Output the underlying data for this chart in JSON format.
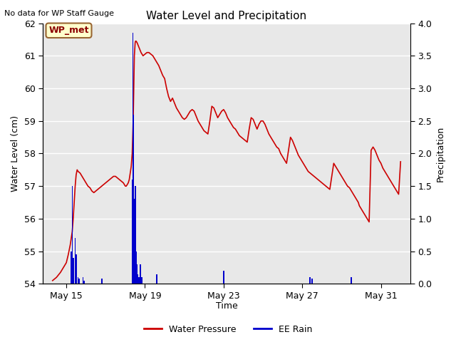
{
  "title": "Water Level and Precipitation",
  "top_left_text": "No data for WP Staff Gauge",
  "ylabel_left": "Water Level (cm)",
  "ylabel_right": "Precipitation",
  "xlabel": "Time",
  "ylim_left": [
    54.0,
    62.0
  ],
  "ylim_right": [
    0.0,
    4.0
  ],
  "yticks_left": [
    54.0,
    55.0,
    56.0,
    57.0,
    58.0,
    59.0,
    60.0,
    61.0,
    62.0
  ],
  "yticks_right": [
    0.0,
    0.5,
    1.0,
    1.5,
    2.0,
    2.5,
    3.0,
    3.5,
    4.0
  ],
  "bg_color": "#e8e8e8",
  "water_pressure_color": "#cc0000",
  "rain_color": "#0000cc",
  "legend_label_wp": "Water Pressure",
  "legend_label_rain": "EE Rain",
  "annotation_label": "WP_met",
  "xtick_days": [
    1,
    5,
    9,
    13,
    17
  ],
  "xtick_labels": [
    "May 15",
    "May 19",
    "May 23",
    "May 27",
    "May 31"
  ],
  "xmin": -0.2,
  "xmax": 18.5,
  "water_pressure": [
    [
      0.3,
      54.1
    ],
    [
      0.5,
      54.2
    ],
    [
      0.7,
      54.35
    ],
    [
      0.85,
      54.5
    ],
    [
      1.0,
      54.65
    ],
    [
      1.1,
      54.9
    ],
    [
      1.2,
      55.2
    ],
    [
      1.3,
      55.6
    ],
    [
      1.35,
      56.0
    ],
    [
      1.4,
      56.5
    ],
    [
      1.45,
      57.0
    ],
    [
      1.5,
      57.35
    ],
    [
      1.55,
      57.5
    ],
    [
      1.6,
      57.45
    ],
    [
      1.7,
      57.4
    ],
    [
      1.8,
      57.3
    ],
    [
      1.9,
      57.2
    ],
    [
      2.0,
      57.1
    ],
    [
      2.1,
      57.0
    ],
    [
      2.2,
      56.95
    ],
    [
      2.3,
      56.85
    ],
    [
      2.4,
      56.8
    ],
    [
      2.5,
      56.85
    ],
    [
      2.6,
      56.9
    ],
    [
      2.7,
      56.95
    ],
    [
      2.8,
      57.0
    ],
    [
      2.9,
      57.05
    ],
    [
      3.0,
      57.1
    ],
    [
      3.1,
      57.15
    ],
    [
      3.2,
      57.2
    ],
    [
      3.3,
      57.25
    ],
    [
      3.4,
      57.3
    ],
    [
      3.5,
      57.3
    ],
    [
      3.6,
      57.25
    ],
    [
      3.7,
      57.2
    ],
    [
      3.8,
      57.15
    ],
    [
      3.9,
      57.1
    ],
    [
      4.0,
      57.0
    ],
    [
      4.05,
      57.0
    ],
    [
      4.1,
      57.05
    ],
    [
      4.15,
      57.1
    ],
    [
      4.2,
      57.2
    ],
    [
      4.25,
      57.4
    ],
    [
      4.3,
      57.6
    ],
    [
      4.35,
      58.0
    ],
    [
      4.4,
      59.0
    ],
    [
      4.43,
      60.0
    ],
    [
      4.46,
      61.0
    ],
    [
      4.48,
      61.2
    ],
    [
      4.5,
      61.4
    ],
    [
      4.52,
      61.45
    ],
    [
      4.55,
      61.45
    ],
    [
      4.6,
      61.4
    ],
    [
      4.7,
      61.25
    ],
    [
      4.8,
      61.1
    ],
    [
      4.9,
      61.0
    ],
    [
      5.0,
      61.05
    ],
    [
      5.1,
      61.1
    ],
    [
      5.2,
      61.1
    ],
    [
      5.3,
      61.05
    ],
    [
      5.4,
      61.0
    ],
    [
      5.5,
      60.9
    ],
    [
      5.6,
      60.8
    ],
    [
      5.7,
      60.7
    ],
    [
      5.8,
      60.55
    ],
    [
      5.9,
      60.4
    ],
    [
      6.0,
      60.3
    ],
    [
      6.1,
      60.0
    ],
    [
      6.2,
      59.75
    ],
    [
      6.3,
      59.6
    ],
    [
      6.35,
      59.65
    ],
    [
      6.4,
      59.7
    ],
    [
      6.5,
      59.55
    ],
    [
      6.6,
      59.4
    ],
    [
      6.7,
      59.3
    ],
    [
      6.8,
      59.2
    ],
    [
      6.9,
      59.1
    ],
    [
      7.0,
      59.05
    ],
    [
      7.1,
      59.1
    ],
    [
      7.2,
      59.2
    ],
    [
      7.3,
      59.3
    ],
    [
      7.4,
      59.35
    ],
    [
      7.5,
      59.3
    ],
    [
      7.6,
      59.15
    ],
    [
      7.7,
      59.0
    ],
    [
      7.8,
      58.9
    ],
    [
      7.9,
      58.8
    ],
    [
      8.0,
      58.7
    ],
    [
      8.1,
      58.65
    ],
    [
      8.2,
      58.6
    ],
    [
      8.3,
      59.0
    ],
    [
      8.4,
      59.45
    ],
    [
      8.5,
      59.4
    ],
    [
      8.6,
      59.25
    ],
    [
      8.7,
      59.1
    ],
    [
      8.8,
      59.2
    ],
    [
      8.9,
      59.3
    ],
    [
      9.0,
      59.35
    ],
    [
      9.1,
      59.25
    ],
    [
      9.2,
      59.1
    ],
    [
      9.3,
      59.0
    ],
    [
      9.4,
      58.9
    ],
    [
      9.5,
      58.8
    ],
    [
      9.6,
      58.75
    ],
    [
      9.7,
      58.65
    ],
    [
      9.8,
      58.55
    ],
    [
      9.9,
      58.5
    ],
    [
      10.0,
      58.45
    ],
    [
      10.1,
      58.4
    ],
    [
      10.2,
      58.35
    ],
    [
      10.3,
      58.75
    ],
    [
      10.4,
      59.1
    ],
    [
      10.5,
      59.05
    ],
    [
      10.6,
      58.9
    ],
    [
      10.7,
      58.75
    ],
    [
      10.8,
      58.9
    ],
    [
      10.9,
      59.0
    ],
    [
      11.0,
      59.0
    ],
    [
      11.1,
      58.9
    ],
    [
      11.2,
      58.75
    ],
    [
      11.3,
      58.6
    ],
    [
      11.4,
      58.5
    ],
    [
      11.5,
      58.4
    ],
    [
      11.6,
      58.3
    ],
    [
      11.7,
      58.2
    ],
    [
      11.8,
      58.15
    ],
    [
      11.9,
      58.0
    ],
    [
      12.0,
      57.9
    ],
    [
      12.1,
      57.8
    ],
    [
      12.2,
      57.7
    ],
    [
      12.3,
      58.1
    ],
    [
      12.4,
      58.5
    ],
    [
      12.5,
      58.4
    ],
    [
      12.6,
      58.25
    ],
    [
      12.7,
      58.1
    ],
    [
      12.8,
      57.95
    ],
    [
      12.9,
      57.85
    ],
    [
      13.0,
      57.75
    ],
    [
      13.1,
      57.65
    ],
    [
      13.2,
      57.55
    ],
    [
      13.3,
      57.45
    ],
    [
      13.4,
      57.4
    ],
    [
      13.5,
      57.35
    ],
    [
      13.6,
      57.3
    ],
    [
      13.7,
      57.25
    ],
    [
      13.8,
      57.2
    ],
    [
      13.9,
      57.15
    ],
    [
      14.0,
      57.1
    ],
    [
      14.1,
      57.05
    ],
    [
      14.2,
      57.0
    ],
    [
      14.3,
      56.95
    ],
    [
      14.4,
      56.9
    ],
    [
      14.5,
      57.3
    ],
    [
      14.6,
      57.7
    ],
    [
      14.7,
      57.6
    ],
    [
      14.8,
      57.5
    ],
    [
      14.9,
      57.4
    ],
    [
      15.0,
      57.3
    ],
    [
      15.1,
      57.2
    ],
    [
      15.2,
      57.1
    ],
    [
      15.3,
      57.0
    ],
    [
      15.4,
      56.95
    ],
    [
      15.5,
      56.85
    ],
    [
      15.6,
      56.75
    ],
    [
      15.7,
      56.65
    ],
    [
      15.8,
      56.55
    ],
    [
      15.85,
      56.5
    ],
    [
      15.9,
      56.4
    ],
    [
      16.0,
      56.3
    ],
    [
      16.1,
      56.2
    ],
    [
      16.2,
      56.1
    ],
    [
      16.3,
      56.0
    ],
    [
      16.4,
      55.9
    ],
    [
      16.5,
      58.1
    ],
    [
      16.6,
      58.2
    ],
    [
      16.7,
      58.1
    ],
    [
      16.8,
      57.95
    ],
    [
      16.9,
      57.8
    ],
    [
      17.0,
      57.7
    ],
    [
      17.1,
      57.55
    ],
    [
      17.2,
      57.45
    ],
    [
      17.3,
      57.35
    ],
    [
      17.4,
      57.25
    ],
    [
      17.5,
      57.15
    ],
    [
      17.6,
      57.05
    ],
    [
      17.7,
      56.95
    ],
    [
      17.8,
      56.85
    ],
    [
      17.9,
      56.75
    ],
    [
      18.0,
      57.75
    ]
  ],
  "rain": [
    [
      1.25,
      0.5
    ],
    [
      1.3,
      1.5
    ],
    [
      1.35,
      0.4
    ],
    [
      1.45,
      0.7
    ],
    [
      1.5,
      0.45
    ],
    [
      1.6,
      0.1
    ],
    [
      1.65,
      0.08
    ],
    [
      1.85,
      0.1
    ],
    [
      1.9,
      0.05
    ],
    [
      2.8,
      0.08
    ],
    [
      4.35,
      1.6
    ],
    [
      4.38,
      3.85
    ],
    [
      4.41,
      2.6
    ],
    [
      4.44,
      1.3
    ],
    [
      4.47,
      0.7
    ],
    [
      4.5,
      1.5
    ],
    [
      4.53,
      1.5
    ],
    [
      4.56,
      0.5
    ],
    [
      4.6,
      0.3
    ],
    [
      4.63,
      0.15
    ],
    [
      4.7,
      0.1
    ],
    [
      4.77,
      0.3
    ],
    [
      4.83,
      0.1
    ],
    [
      5.6,
      0.15
    ],
    [
      9.0,
      0.2
    ],
    [
      13.4,
      0.1
    ],
    [
      13.5,
      0.08
    ],
    [
      15.5,
      0.1
    ]
  ]
}
